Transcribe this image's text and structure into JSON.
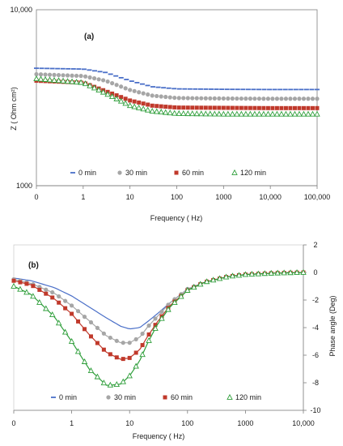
{
  "chart_data": [
    {
      "type": "scatter",
      "panel_label": "(a)",
      "xlabel": "Frequency ( Hz)",
      "ylabel": "Z  ( Ohm cm²)",
      "x_scale": "log",
      "y_scale": "log",
      "xlim": [
        0.1,
        100000
      ],
      "ylim": [
        1000,
        10000
      ],
      "x_tick_labels": [
        "0",
        "1",
        "10",
        "100",
        "1000",
        "10,000",
        "100,000"
      ],
      "y_tick_labels": [
        "10,000",
        "1000"
      ],
      "grid": false,
      "legend_position": "bottom-inside",
      "series": [
        {
          "name": "0 min",
          "color": "#4a6fc8",
          "marker": "dash",
          "x": [
            0.1,
            1,
            3,
            10,
            30,
            100,
            1000,
            10000,
            100000
          ],
          "y": [
            4650,
            4600,
            4400,
            3950,
            3650,
            3550,
            3530,
            3520,
            3520
          ]
        },
        {
          "name": "30 min",
          "color": "#a6a6a6",
          "marker": "circle",
          "x": [
            0.1,
            1,
            3,
            10,
            30,
            100,
            1000,
            10000,
            100000
          ],
          "y": [
            4300,
            4200,
            3950,
            3500,
            3250,
            3150,
            3130,
            3120,
            3120
          ]
        },
        {
          "name": "60 min",
          "color": "#c0392b",
          "marker": "square",
          "x": [
            0.1,
            1,
            3,
            10,
            30,
            100,
            1000,
            10000,
            100000
          ],
          "y": [
            3950,
            3850,
            3450,
            3050,
            2850,
            2780,
            2770,
            2760,
            2760
          ]
        },
        {
          "name": "120 min",
          "color": "#2e9e3a",
          "marker": "triangle",
          "x": [
            0.1,
            1,
            3,
            10,
            30,
            100,
            1000,
            10000,
            100000
          ],
          "y": [
            4050,
            3850,
            3350,
            2850,
            2650,
            2570,
            2550,
            2550,
            2550
          ]
        }
      ]
    },
    {
      "type": "line",
      "panel_label": "(b)",
      "xlabel": "Frequency ( Hz)",
      "ylabel": "Phase angle (Deg)",
      "x_scale": "log",
      "xlim": [
        0.1,
        10000
      ],
      "ylim": [
        -10,
        2
      ],
      "x_tick_labels": [
        "0",
        "1",
        "10",
        "100",
        "1000",
        "10,000"
      ],
      "y_ticks": [
        2,
        0,
        -2,
        -4,
        -6,
        -8,
        -10
      ],
      "y_axis_side": "right",
      "grid": false,
      "legend_position": "bottom-inside",
      "series": [
        {
          "name": "0 min",
          "color": "#4a6fc8",
          "marker": "dash",
          "x": [
            0.1,
            0.2,
            0.5,
            1,
            2,
            4,
            7,
            10,
            15,
            20,
            30,
            50,
            100,
            200,
            500,
            1000,
            3000,
            10000
          ],
          "y": [
            -0.4,
            -0.6,
            -1.1,
            -1.7,
            -2.5,
            -3.3,
            -3.9,
            -4.1,
            -4.0,
            -3.6,
            -3.0,
            -2.2,
            -1.2,
            -0.7,
            -0.3,
            -0.15,
            -0.05,
            0
          ]
        },
        {
          "name": "30 min",
          "color": "#a6a6a6",
          "marker": "circle",
          "x": [
            0.1,
            0.2,
            0.5,
            1,
            2,
            4,
            7,
            10,
            15,
            20,
            30,
            50,
            100,
            200,
            500,
            1000,
            3000,
            10000
          ],
          "y": [
            -0.5,
            -0.8,
            -1.5,
            -2.4,
            -3.5,
            -4.6,
            -5.1,
            -5.1,
            -4.7,
            -4.0,
            -3.2,
            -2.2,
            -1.2,
            -0.7,
            -0.3,
            -0.15,
            -0.05,
            0
          ]
        },
        {
          "name": "60 min",
          "color": "#c0392b",
          "marker": "square",
          "x": [
            0.1,
            0.2,
            0.5,
            1,
            2,
            4,
            7,
            10,
            15,
            20,
            30,
            50,
            100,
            200,
            500,
            1000,
            3000,
            10000
          ],
          "y": [
            -0.6,
            -0.9,
            -1.9,
            -3.0,
            -4.5,
            -5.8,
            -6.3,
            -6.2,
            -5.6,
            -4.7,
            -3.6,
            -2.4,
            -1.3,
            -0.7,
            -0.3,
            -0.15,
            -0.05,
            0
          ]
        },
        {
          "name": "120 min",
          "color": "#2e9e3a",
          "marker": "triangle",
          "x": [
            0.1,
            0.2,
            0.5,
            1,
            2,
            4,
            7,
            10,
            15,
            20,
            30,
            50,
            100,
            200,
            500,
            1000,
            3000,
            10000
          ],
          "y": [
            -1.0,
            -1.6,
            -3.2,
            -5.0,
            -7.0,
            -8.2,
            -8.1,
            -7.5,
            -6.4,
            -5.2,
            -3.8,
            -2.5,
            -1.3,
            -0.7,
            -0.3,
            -0.15,
            -0.05,
            0
          ]
        }
      ]
    }
  ]
}
